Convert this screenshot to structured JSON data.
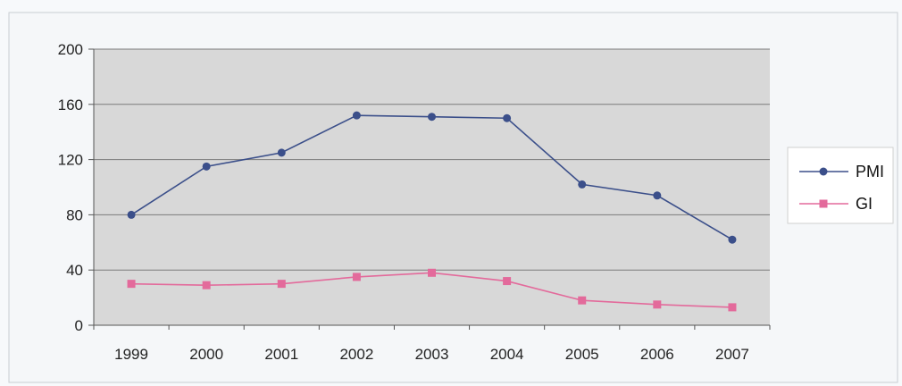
{
  "chart_data": {
    "type": "line",
    "categories": [
      "1999",
      "2000",
      "2001",
      "2002",
      "2003",
      "2004",
      "2005",
      "2006",
      "2007"
    ],
    "ylim": [
      0,
      200
    ],
    "yticks": [
      0,
      40,
      80,
      120,
      160,
      200
    ],
    "grid": true,
    "legend": "right",
    "plot_background": "#d8d8d8",
    "series": [
      {
        "name": "PMI",
        "color": "#3b4f8a",
        "marker": "circle",
        "values": [
          80,
          115,
          125,
          152,
          151,
          150,
          102,
          94,
          62
        ]
      },
      {
        "name": "GI",
        "color": "#e36a9b",
        "marker": "square",
        "values": [
          30,
          29,
          30,
          35,
          38,
          32,
          18,
          15,
          13
        ]
      }
    ]
  }
}
